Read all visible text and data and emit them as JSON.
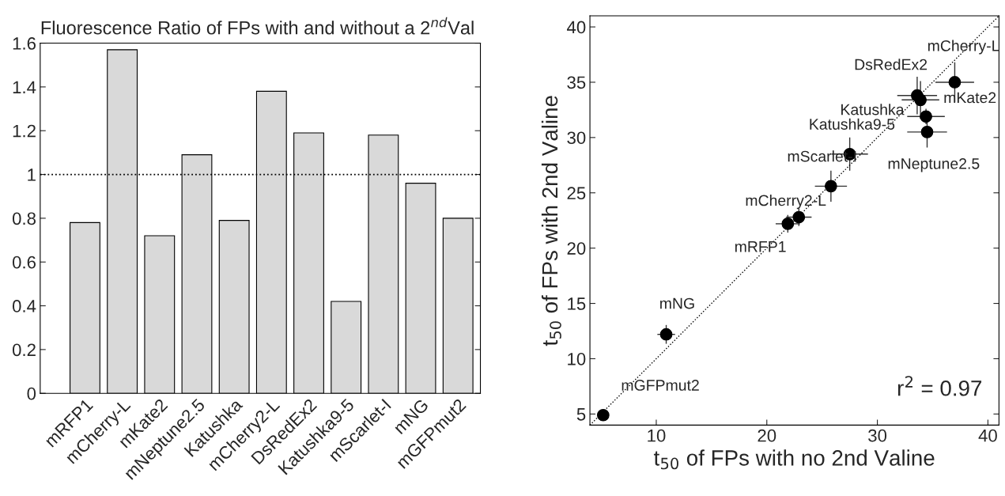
{
  "chart_data": [
    {
      "type": "bar",
      "title": "Fluorescence Ratio of FPs with and without a 2$^{nd}$Val",
      "categories": [
        "mRFP1",
        "mCherry-L",
        "mKate2",
        "mNeptune2.5",
        "Katushka",
        "mCherry2-L",
        "DsRedEx2",
        "Katushka9-5",
        "mScarlet-I",
        "mNG",
        "mGFPmut2"
      ],
      "values": [
        0.78,
        1.57,
        0.72,
        1.09,
        0.79,
        1.38,
        1.19,
        0.42,
        1.18,
        0.96,
        0.8
      ],
      "color": "#d9d9d9",
      "ylim": [
        0,
        1.6
      ],
      "yticks": [
        0,
        0.2,
        0.4,
        0.6,
        0.8,
        {
          "value": 1.0,
          "label": "1"
        },
        1.2,
        1.4,
        1.6
      ],
      "ref_lines": [
        {
          "axis": "y",
          "value": 1,
          "color": "#000000",
          "line_style": "dotted"
        }
      ],
      "grid": false
    },
    {
      "type": "scatter",
      "xlabel": "t$_{50}$ of FPs with no 2nd Valine",
      "ylabel": "t$_{50}$ of FPs with 2nd Valine",
      "series": [
        {
          "type": "scatter",
          "color": "#000000",
          "x": [
            21.9,
            37.0,
            34.4,
            34.5,
            33.9,
            22.9,
            33.6,
            27.5,
            25.8,
            10.9,
            5.2
          ],
          "values": [
            22.2,
            35.0,
            31.9,
            30.5,
            33.4,
            22.8,
            33.8,
            28.5,
            25.6,
            12.2,
            4.9
          ],
          "xerrors": [
            1.1,
            1.75,
            1.7,
            1.8,
            1.7,
            1.15,
            1.8,
            1.65,
            1.45,
            0.8,
            null
          ],
          "errors": [
            0.8,
            1.8,
            0.7,
            1.4,
            1.7,
            0.8,
            1.7,
            1.5,
            1.4,
            0.85,
            null
          ]
        },
        {
          "type": "line",
          "color": "#000000",
          "line_style": "dotted",
          "marker": "none",
          "x": [
            4,
            41
          ],
          "values": [
            4,
            41
          ]
        }
      ],
      "annotations": [
        {
          "text": "mRFP1",
          "x": 21.9,
          "y": 22.2
        },
        {
          "text": "mCherry-L",
          "x": 37.0,
          "y": 35.0
        },
        {
          "text": "mKate2",
          "x": 34.4,
          "y": 31.9
        },
        {
          "text": "mNeptune2.5",
          "x": 34.5,
          "y": 30.5
        },
        {
          "text": "Katushka",
          "x": 33.9,
          "y": 33.4
        },
        {
          "text": "mCherry2-L",
          "x": 22.9,
          "y": 22.8
        },
        {
          "text": "DsRedEx2",
          "x": 33.6,
          "y": 33.8
        },
        {
          "text": "Katushka9-5",
          "x": 27.5,
          "y": 28.5
        },
        {
          "text": "mScarlet-I",
          "x": 25.8,
          "y": 25.6
        },
        {
          "text": "mNG",
          "x": 10.9,
          "y": 12.2
        },
        {
          "text": "mGFPmut2",
          "x": 5.2,
          "y": 4.9
        },
        "r$^{2}$ = 0.97"
      ],
      "xlim": [
        4,
        41
      ],
      "ylim": [
        4,
        41
      ],
      "xticks": [
        10,
        20,
        30,
        40
      ],
      "yticks": [
        5,
        10,
        15,
        20,
        25,
        30,
        35,
        40
      ],
      "marker": "circle",
      "grid": false,
      "legend": false
    }
  ]
}
